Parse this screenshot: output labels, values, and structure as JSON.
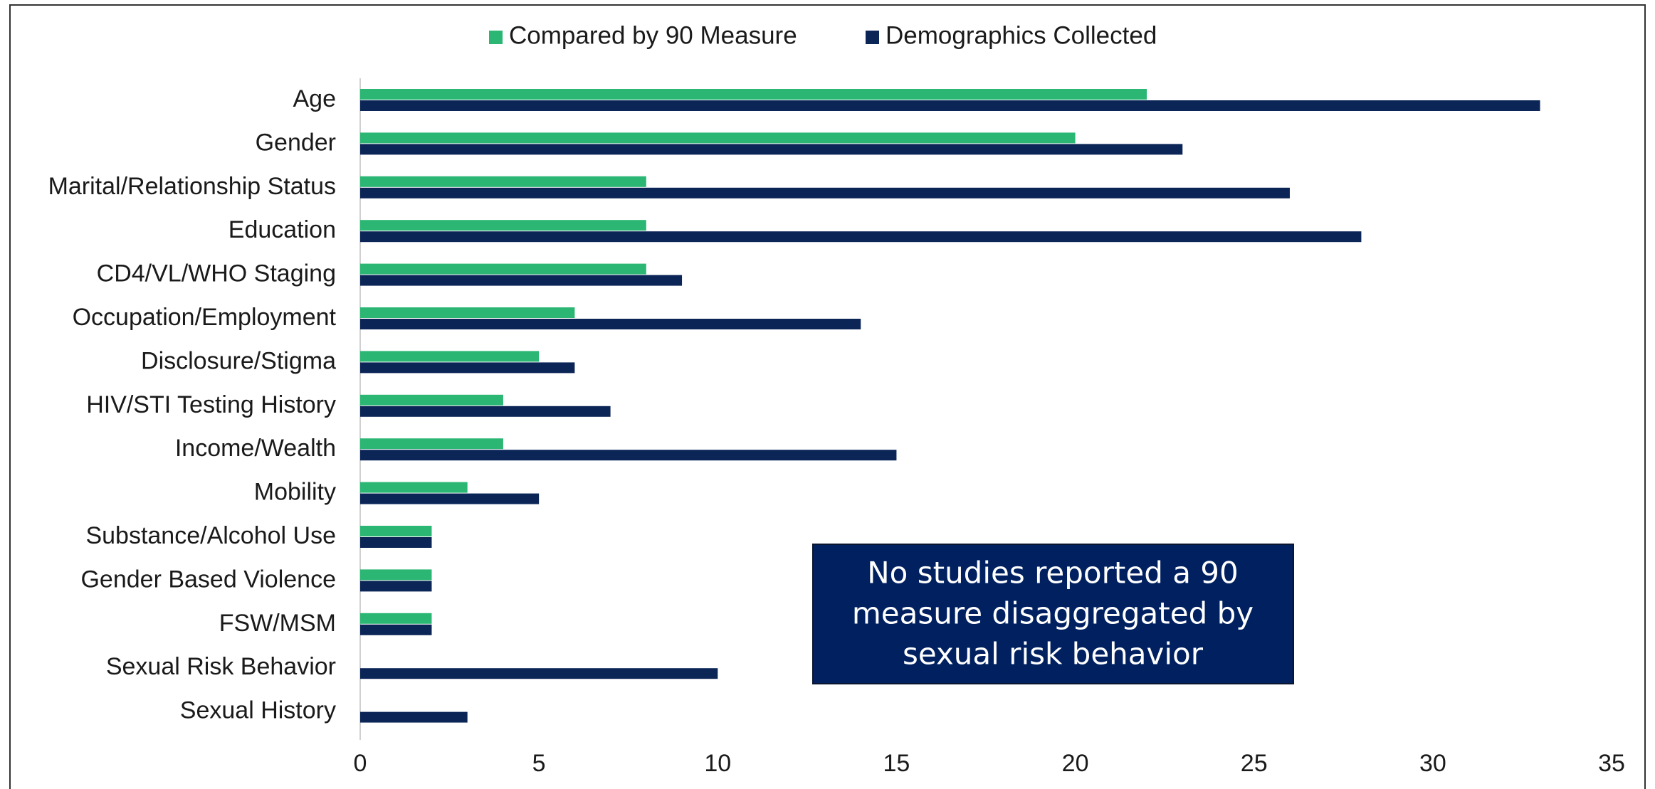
{
  "chart_data": {
    "type": "barh",
    "categories": [
      "Age",
      "Gender",
      "Marital/Relationship Status",
      "Education",
      "CD4/VL/WHO Staging",
      "Occupation/Employment",
      "Disclosure/Stigma",
      "HIV/STI Testing History",
      "Income/Wealth",
      "Mobility",
      "Substance/Alcohol Use",
      "Gender Based Violence",
      "FSW/MSM",
      "Sexual Risk Behavior",
      "Sexual History"
    ],
    "series": [
      {
        "name": "Compared by 90 Measure",
        "color": "#2bb673",
        "values": [
          22,
          20,
          8,
          8,
          8,
          6,
          5,
          4,
          4,
          3,
          2,
          2,
          2,
          0,
          0
        ]
      },
      {
        "name": "Demographics Collected",
        "color": "#0b2556",
        "values": [
          33,
          23,
          26,
          28,
          9,
          14,
          6,
          7,
          15,
          5,
          2,
          2,
          2,
          10,
          3
        ]
      }
    ],
    "xlim": [
      0,
      35
    ],
    "xticks": [
      0,
      5,
      10,
      15,
      20,
      25,
      30,
      35
    ],
    "grid": false,
    "legend": "top",
    "annotation": [
      "No studies reported a 90",
      "measure disaggregated by",
      "sexual risk behavior"
    ]
  }
}
